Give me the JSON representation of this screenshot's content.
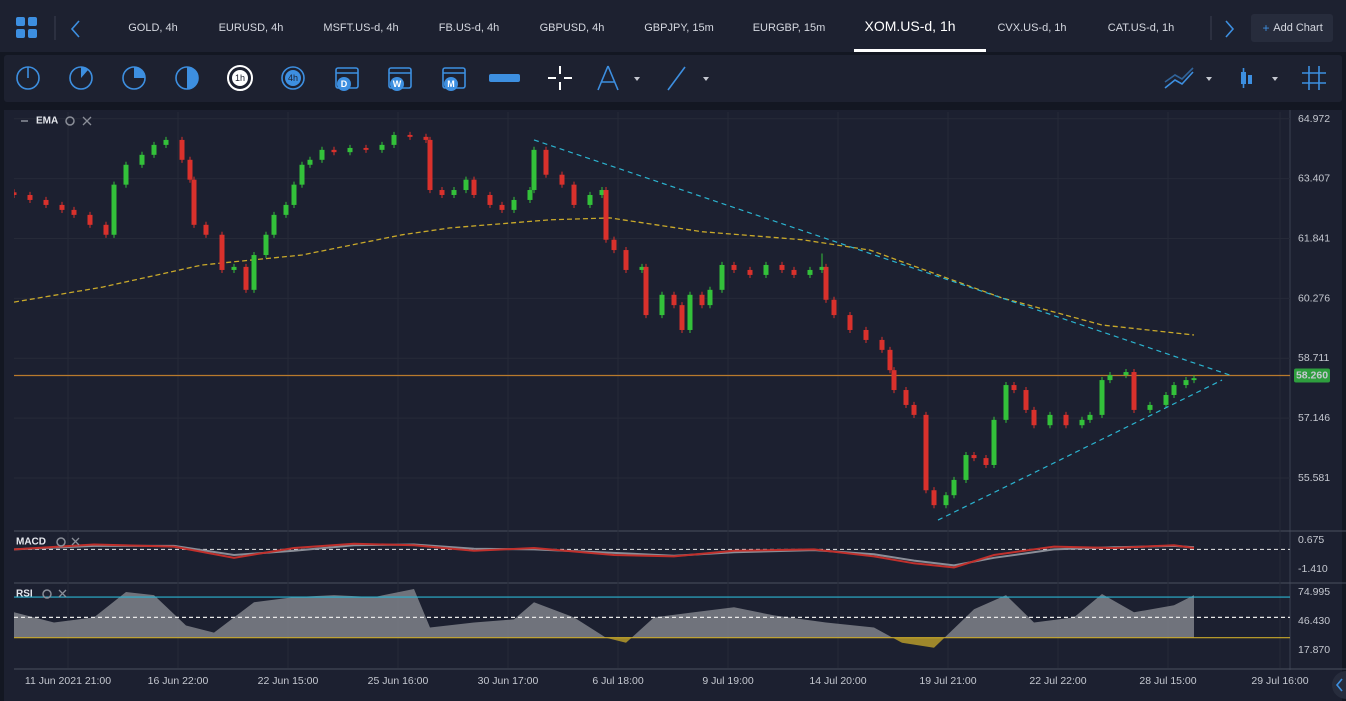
{
  "tabs": [
    "GOLD, 4h",
    "EURUSD, 4h",
    "MSFT.US-d, 4h",
    "FB.US-d, 4h",
    "GBPUSD, 4h",
    "GBPJPY, 15m",
    "EURGBP, 15m",
    "XOM.US-d, 1h",
    "CVX.US-d, 1h",
    "CAT.US-d, 1h"
  ],
  "active_tab": 7,
  "add_chart": "Add Chart",
  "toolbar_labels": [
    "1h",
    "4h",
    "D",
    "W",
    "M"
  ],
  "chart_data": [
    {
      "type": "candlestick",
      "indicator": "EMA",
      "up_color": "#33c13a",
      "down_color": "#d9312c",
      "grid": true,
      "xlim": [
        0,
        319
      ],
      "xticks": [
        {
          "value": 13.5,
          "label": "11 Jun 2021 21:00"
        },
        {
          "value": 41,
          "label": "16 Jun 22:00"
        },
        {
          "value": 68.5,
          "label": "22 Jun 15:00"
        },
        {
          "value": 96,
          "label": "25 Jun 16:00"
        },
        {
          "value": 123.5,
          "label": "30 Jun 17:00"
        },
        {
          "value": 151,
          "label": "6 Jul 18:00"
        },
        {
          "value": 178.5,
          "label": "9 Jul 19:00"
        },
        {
          "value": 206,
          "label": "14 Jul 20:00"
        },
        {
          "value": 233.5,
          "label": "19 Jul 21:00"
        },
        {
          "value": 261,
          "label": "22 Jul 22:00"
        },
        {
          "value": 288.5,
          "label": "28 Jul 15:00"
        },
        {
          "value": 316.5,
          "label": "29 Jul 16:00"
        }
      ],
      "ylim": [
        54.22,
        65.15
      ],
      "yticks": [
        64.972,
        63.407,
        61.841,
        60.276,
        58.711,
        57.146,
        55.581
      ],
      "x": [
        0,
        4,
        8,
        12,
        15,
        19,
        23,
        25,
        28,
        32,
        35,
        38,
        42,
        44,
        45,
        48,
        52,
        55,
        58,
        60,
        63,
        65,
        68,
        70,
        72,
        74,
        77,
        80,
        84,
        88,
        92,
        95,
        99,
        103,
        104,
        107,
        110,
        113,
        115,
        119,
        122,
        125,
        129,
        130,
        133,
        137,
        140,
        144,
        147,
        148,
        150,
        153,
        157,
        158,
        162,
        165,
        167,
        169,
        172,
        174,
        177,
        180,
        184,
        188,
        192,
        195,
        199,
        202,
        203,
        205,
        209,
        213,
        217,
        219,
        220,
        223,
        225,
        228,
        230,
        233,
        235,
        238,
        240,
        243,
        245,
        248,
        250,
        253,
        255,
        259,
        263,
        267,
        269,
        272,
        274,
        278,
        280,
        284,
        288,
        290,
        293,
        295
      ],
      "open": [
        63.05,
        62.98,
        62.85,
        62.72,
        62.59,
        62.46,
        62.2,
        61.94,
        63.25,
        63.77,
        64.03,
        64.29,
        64.42,
        63.9,
        63.38,
        62.2,
        61.94,
        61.02,
        61.1,
        60.5,
        61.41,
        61.94,
        62.46,
        62.72,
        63.25,
        63.77,
        63.9,
        64.16,
        64.1,
        64.21,
        64.16,
        64.29,
        64.55,
        64.5,
        64.42,
        63.11,
        62.98,
        63.11,
        63.38,
        62.98,
        62.72,
        62.59,
        62.85,
        63.11,
        64.16,
        63.51,
        63.25,
        62.72,
        62.98,
        63.11,
        61.81,
        61.54,
        61.02,
        61.1,
        59.84,
        60.37,
        60.1,
        59.45,
        60.37,
        60.1,
        60.5,
        61.15,
        61.02,
        60.89,
        61.15,
        61.02,
        60.89,
        61.02,
        61.1,
        60.24,
        59.84,
        59.45,
        59.19,
        58.93,
        58.4,
        57.88,
        57.49,
        57.23,
        55.26,
        54.87,
        55.13,
        55.53,
        56.18,
        56.1,
        55.92,
        57.1,
        58.01,
        57.88,
        57.36,
        56.96,
        57.23,
        56.96,
        57.1,
        57.23,
        58.14,
        58.27,
        58.35,
        57.36,
        57.49,
        57.75,
        58.01,
        58.14
      ],
      "high": [
        63.13,
        63.06,
        62.93,
        62.8,
        62.67,
        62.54,
        62.28,
        63.33,
        63.85,
        64.11,
        64.37,
        64.5,
        64.5,
        63.98,
        63.46,
        62.28,
        62.02,
        61.18,
        61.18,
        61.49,
        62.02,
        62.54,
        62.8,
        63.33,
        63.85,
        63.98,
        64.24,
        64.24,
        64.29,
        64.29,
        64.37,
        64.63,
        64.63,
        64.58,
        64.5,
        63.19,
        63.19,
        63.46,
        63.46,
        63.06,
        62.8,
        62.93,
        63.19,
        64.24,
        64.24,
        63.59,
        63.33,
        63.06,
        63.19,
        63.19,
        61.89,
        61.62,
        61.18,
        61.18,
        60.45,
        60.45,
        60.18,
        60.45,
        60.45,
        60.58,
        61.23,
        61.23,
        61.1,
        61.23,
        61.23,
        61.1,
        61.1,
        61.45,
        61.18,
        60.32,
        59.92,
        59.53,
        59.27,
        59.01,
        58.48,
        57.96,
        57.57,
        57.31,
        55.34,
        55.21,
        55.61,
        56.26,
        56.26,
        56.18,
        57.18,
        58.09,
        58.09,
        57.96,
        57.44,
        57.31,
        57.31,
        57.18,
        57.31,
        58.22,
        58.35,
        58.43,
        58.43,
        57.57,
        57.83,
        58.09,
        58.22,
        58.27
      ],
      "low": [
        62.9,
        62.77,
        62.64,
        62.51,
        62.38,
        62.12,
        61.86,
        61.86,
        63.17,
        63.69,
        63.95,
        64.21,
        63.82,
        63.3,
        62.12,
        61.86,
        60.94,
        60.94,
        60.42,
        60.42,
        61.33,
        61.86,
        62.38,
        62.64,
        63.17,
        63.69,
        63.82,
        64.02,
        64.02,
        64.08,
        64.08,
        64.21,
        64.42,
        64.34,
        63.03,
        62.9,
        62.9,
        63.03,
        62.9,
        62.64,
        62.51,
        62.51,
        62.77,
        63.03,
        63.43,
        63.17,
        62.64,
        62.64,
        62.9,
        61.73,
        61.46,
        60.94,
        60.94,
        59.76,
        59.76,
        60.02,
        59.37,
        59.37,
        60.02,
        60.02,
        60.42,
        60.94,
        60.81,
        60.81,
        60.94,
        60.81,
        60.81,
        60.94,
        60.16,
        59.76,
        59.37,
        59.11,
        58.85,
        58.32,
        57.8,
        57.41,
        57.15,
        55.18,
        54.79,
        54.79,
        55.05,
        55.45,
        56.02,
        55.84,
        55.84,
        57.02,
        57.8,
        57.28,
        56.88,
        56.88,
        56.88,
        56.88,
        57.02,
        57.15,
        58.06,
        58.19,
        57.28,
        57.28,
        57.41,
        57.67,
        57.93,
        58.06
      ],
      "close": [
        62.98,
        62.85,
        62.72,
        62.59,
        62.46,
        62.2,
        61.94,
        63.25,
        63.77,
        64.03,
        64.29,
        64.42,
        63.9,
        63.38,
        62.2,
        61.94,
        61.02,
        61.1,
        60.5,
        61.41,
        61.94,
        62.46,
        62.72,
        63.25,
        63.77,
        63.9,
        64.16,
        64.1,
        64.21,
        64.16,
        64.29,
        64.55,
        64.5,
        64.42,
        63.11,
        62.98,
        63.11,
        63.38,
        62.98,
        62.72,
        62.59,
        62.85,
        63.11,
        64.16,
        63.51,
        63.25,
        62.72,
        62.98,
        63.11,
        61.81,
        61.54,
        61.02,
        61.1,
        59.84,
        60.37,
        60.1,
        59.45,
        60.37,
        60.1,
        60.5,
        61.15,
        61.02,
        60.89,
        61.15,
        61.02,
        60.89,
        61.02,
        61.1,
        60.24,
        59.84,
        59.45,
        59.19,
        58.93,
        58.4,
        57.88,
        57.49,
        57.23,
        55.26,
        54.87,
        55.13,
        55.53,
        56.18,
        56.1,
        55.92,
        57.1,
        58.01,
        57.88,
        57.36,
        56.96,
        57.23,
        56.96,
        57.1,
        57.23,
        58.14,
        58.27,
        58.35,
        57.36,
        57.49,
        57.75,
        58.01,
        58.14,
        58.19
      ],
      "ema": {
        "color": "#c9a92a",
        "x": [
          0,
          22,
          47,
          72,
          97,
          109,
          134,
          149,
          172,
          197,
          214,
          229,
          247,
          272,
          295
        ],
        "values": [
          60.18,
          60.57,
          61.15,
          61.41,
          61.94,
          62.12,
          62.33,
          62.38,
          62.02,
          61.81,
          61.54,
          60.97,
          60.29,
          59.58,
          59.32
        ]
      },
      "trend_color": "#2bb3cf",
      "trendlines": [
        {
          "x": [
            130,
            304
          ],
          "values": [
            64.42,
            58.27
          ]
        },
        {
          "x": [
            231,
            302
          ],
          "values": [
            54.48,
            58.14
          ]
        }
      ],
      "last_price": {
        "value": 58.26,
        "label": "58.260",
        "color": "#b87a2c",
        "label_color": "#2e9e3e"
      }
    },
    {
      "type": "line",
      "indicator": "MACD",
      "ylim": [
        -2.34,
        1.25
      ],
      "yticks": [
        0.675,
        {
          "value": -1.41,
          "label": "-1.410"
        }
      ],
      "hlines": [
        0
      ],
      "x": [
        0,
        20,
        40,
        55,
        70,
        85,
        100,
        115,
        130,
        150,
        165,
        180,
        200,
        215,
        225,
        235,
        245,
        260,
        275,
        290,
        295
      ],
      "series": [
        {
          "color": "#8a8e98",
          "values": [
            0,
            0.25,
            0.25,
            -0.4,
            -0.1,
            0.3,
            0.35,
            0.05,
            0,
            -0.25,
            -0.45,
            -0.2,
            -0.05,
            -0.35,
            -0.8,
            -1.15,
            -0.6,
            0,
            0.15,
            0.25,
            0.15
          ]
        },
        {
          "color": "#c0302c",
          "values": [
            0,
            0.35,
            0.2,
            -0.6,
            0.1,
            0.4,
            0.3,
            -0.1,
            0.1,
            -0.4,
            -0.5,
            -0.1,
            0,
            -0.5,
            -1.0,
            -1.3,
            -0.4,
            0.2,
            0.1,
            0.3,
            0.1
          ]
        }
      ]
    },
    {
      "type": "area",
      "indicator": "RSI",
      "ylim": [
        0.14,
        81.9
      ],
      "yticks": [
        74.995,
        {
          "value": 46.43,
          "label": "46.430"
        },
        {
          "value": 17.87,
          "label": "17.870"
        }
      ],
      "levels": [
        {
          "value": 70,
          "color": "#2bb3cf"
        },
        {
          "value": 50,
          "color": "#e8e8e8"
        },
        {
          "value": 30,
          "color": "#c9a92a"
        }
      ],
      "color": "#8c8f96",
      "low_color": "#b59a2a",
      "x": [
        0,
        10,
        20,
        28,
        35,
        43,
        50,
        60,
        70,
        80,
        90,
        100,
        104,
        115,
        125,
        130,
        140,
        148,
        153,
        160,
        170,
        180,
        190,
        203,
        215,
        222,
        230,
        240,
        248,
        255,
        265,
        272,
        280,
        290,
        295
      ],
      "values": [
        55,
        45,
        50,
        75,
        72,
        42,
        35,
        65,
        70,
        72,
        70,
        78,
        40,
        45,
        48,
        65,
        50,
        30,
        25,
        50,
        55,
        60,
        52,
        45,
        40,
        25,
        20,
        58,
        72,
        45,
        50,
        73,
        55,
        62,
        72
      ]
    }
  ]
}
